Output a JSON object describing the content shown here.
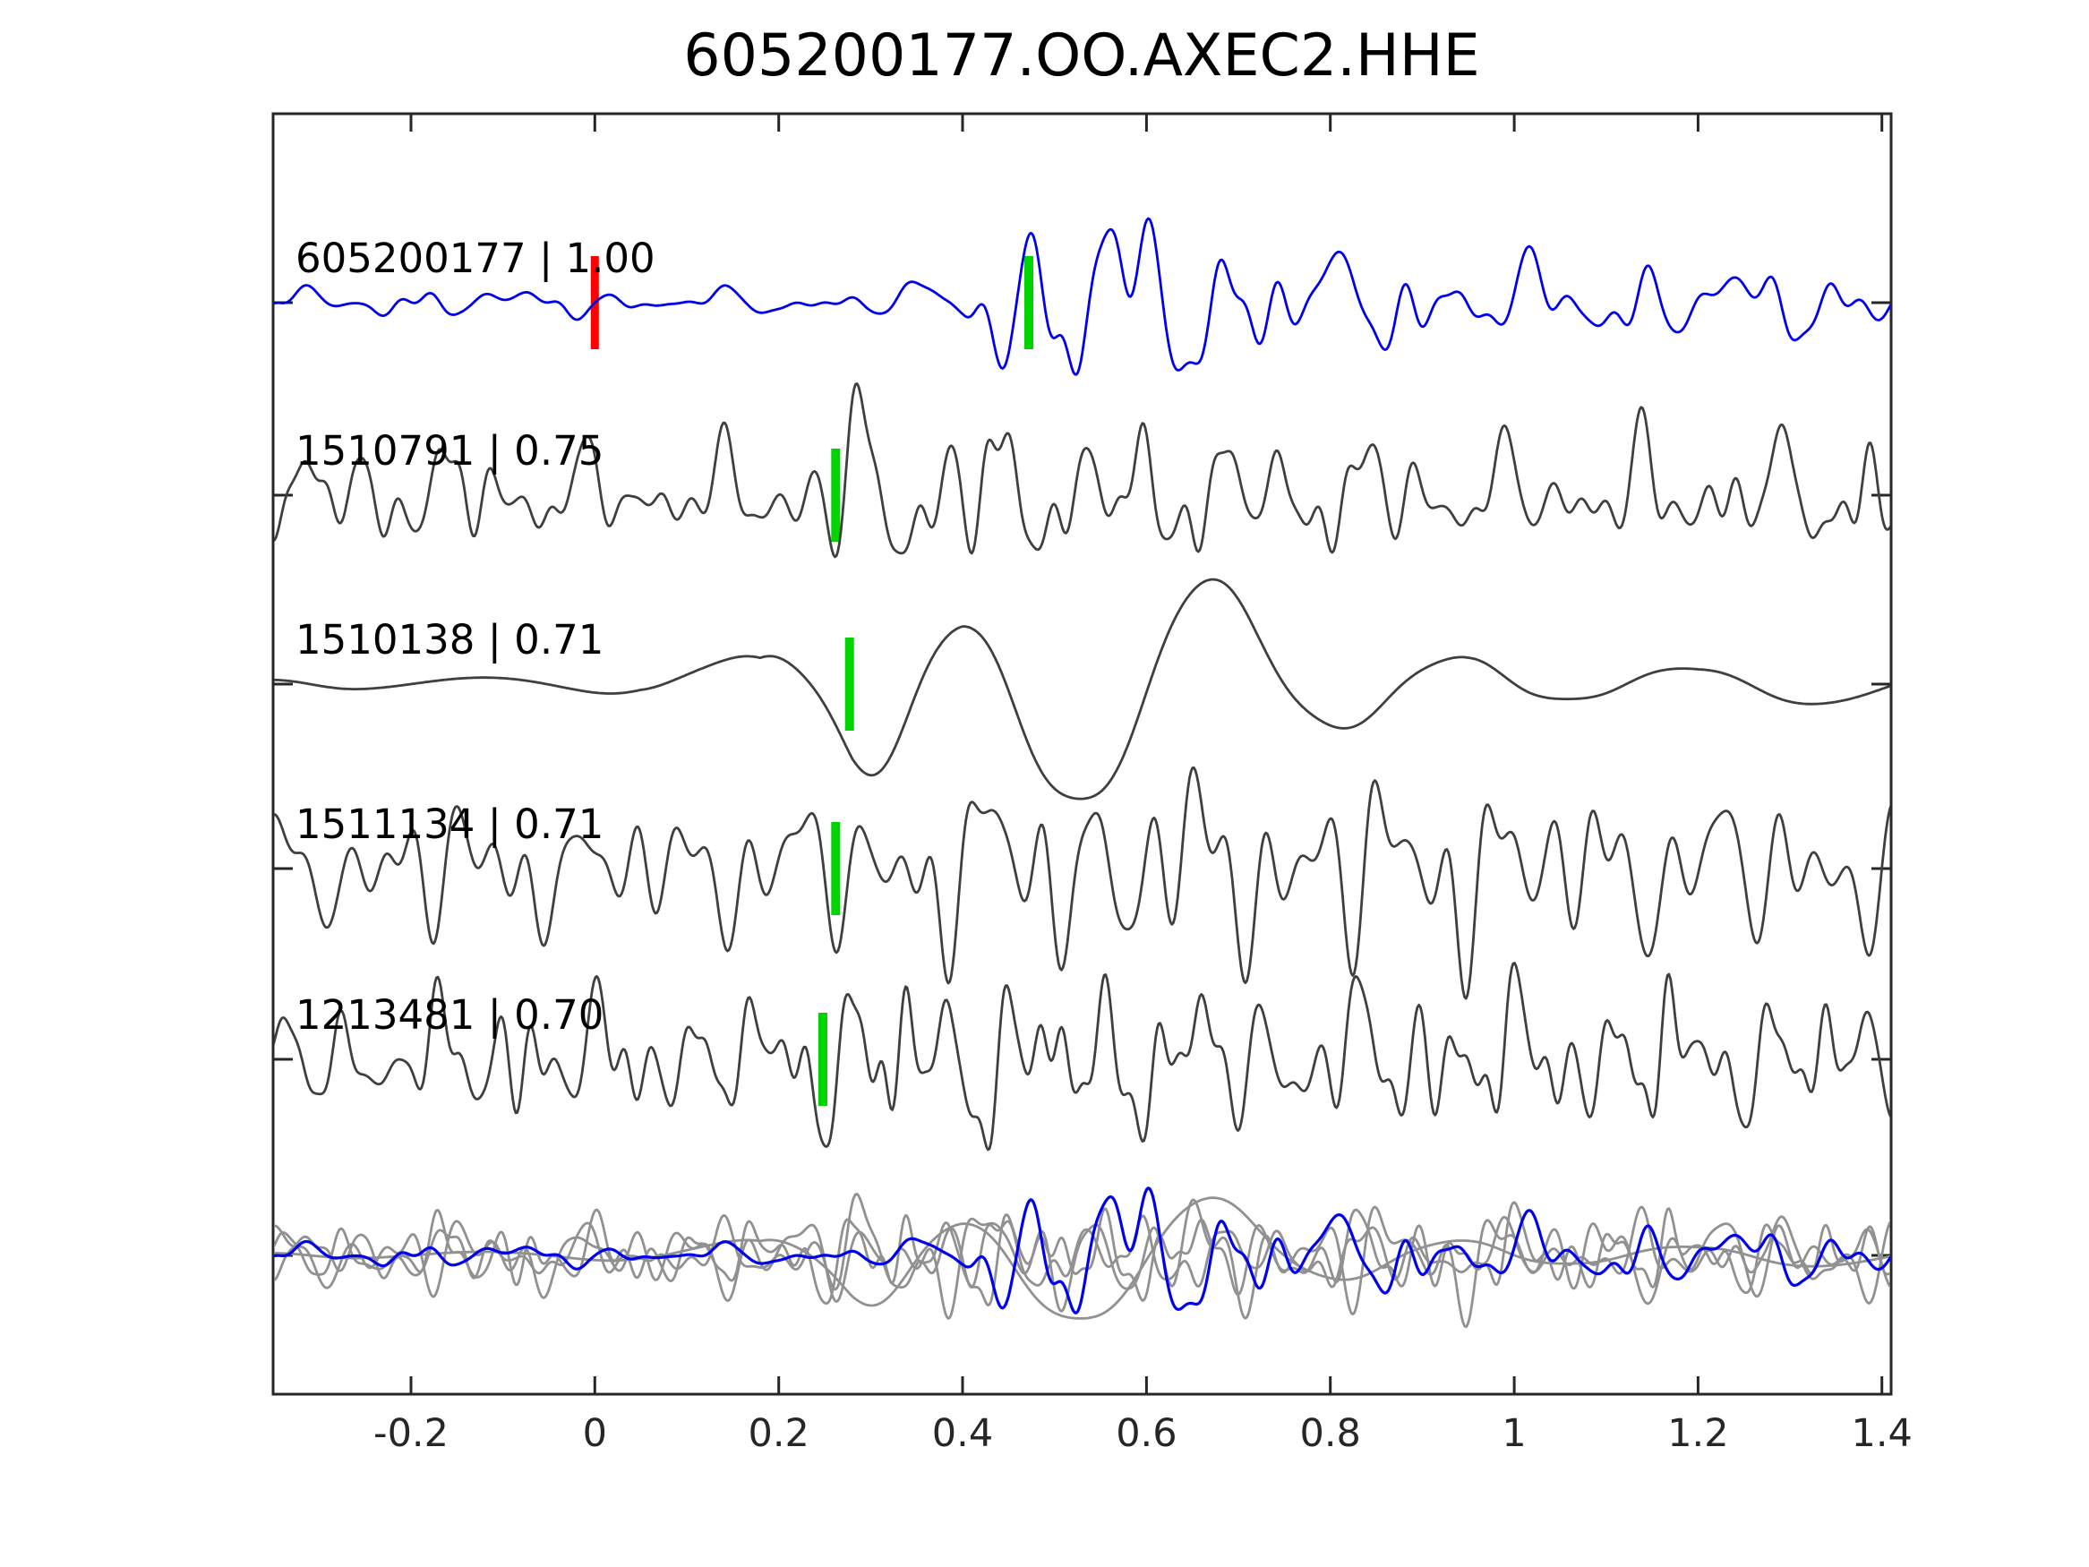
{
  "title": "605200177.OO.AXEC2.HHE",
  "colors": {
    "background": "#ffffff",
    "axis": "#262626",
    "text": "#000000",
    "reference_trace": "#0000ee",
    "candidate_trace": "#3f3f3f",
    "overlay_gray": "#919191",
    "pick_red": "#ff0000",
    "pick_green": "#00d400"
  },
  "chart_data": {
    "type": "line",
    "subtype": "seismogram-multi-trace-comparison",
    "title": "605200177.OO.AXEC2.HHE",
    "xlabel": "",
    "ylabel": "",
    "xlim": [
      -0.35,
      1.41
    ],
    "grid": false,
    "legend": null,
    "x_ticks": [
      {
        "value": -0.2,
        "label": "-0.2"
      },
      {
        "value": 0,
        "label": "0"
      },
      {
        "value": 0.2,
        "label": "0.2"
      },
      {
        "value": 0.4,
        "label": "0.4"
      },
      {
        "value": 0.6,
        "label": "0.6"
      },
      {
        "value": 0.8,
        "label": "0.8"
      },
      {
        "value": 1,
        "label": "1"
      },
      {
        "value": 1.2,
        "label": "1.2"
      },
      {
        "value": 1.4,
        "label": "1.4"
      }
    ],
    "rows": [
      {
        "kind": "trace",
        "event_id": "605200177",
        "similarity": 1.0,
        "label": "605200177 | 1.00",
        "color": "#0000ee",
        "picks": [
          {
            "time": 0.0,
            "color": "#ff0000",
            "type": "reference-time-marker"
          },
          {
            "time": 0.472,
            "color": "#00d400",
            "type": "phase-pick-marker"
          }
        ],
        "synth": {
          "seed": 7,
          "amp": 92,
          "components": [
            {
              "f": 9,
              "a": 0.55
            },
            {
              "f": 15,
              "a": 0.45
            },
            {
              "f": 22,
              "a": 0.3
            },
            {
              "f": 4.5,
              "a": 0.35
            }
          ],
          "detail": {
            "n": 8,
            "fmin": 18,
            "fmax": 40,
            "amp": 0.18
          },
          "envelope": [
            [
              -0.35,
              0.14
            ],
            [
              0.3,
              0.14
            ],
            [
              0.4,
              0.3
            ],
            [
              0.45,
              0.8
            ],
            [
              0.5,
              1.15
            ],
            [
              0.57,
              1.05
            ],
            [
              0.66,
              0.85
            ],
            [
              0.75,
              0.55
            ],
            [
              0.95,
              0.42
            ],
            [
              1.2,
              0.38
            ],
            [
              1.41,
              0.34
            ]
          ]
        }
      },
      {
        "kind": "trace",
        "event_id": "1510791",
        "similarity": 0.75,
        "label": "1510791 | 0.75",
        "color": "#3f3f3f",
        "picks": [
          {
            "time": 0.262,
            "color": "#00d400",
            "type": "phase-pick-marker"
          }
        ],
        "synth": {
          "seed": 21,
          "amp": 80,
          "components": [
            {
              "f": 13,
              "a": 0.6
            },
            {
              "f": 20,
              "a": 0.45
            },
            {
              "f": 7,
              "a": 0.5
            },
            {
              "f": 28,
              "a": 0.3
            }
          ],
          "detail": {
            "n": 8,
            "fmin": 20,
            "fmax": 45,
            "amp": 0.2
          },
          "envelope": [
            [
              -0.35,
              0.5
            ],
            [
              0.18,
              0.5
            ],
            [
              0.24,
              0.75
            ],
            [
              0.3,
              1.05
            ],
            [
              0.38,
              0.95
            ],
            [
              0.5,
              0.7
            ],
            [
              0.75,
              0.62
            ],
            [
              1.0,
              0.55
            ],
            [
              1.25,
              0.6
            ],
            [
              1.41,
              0.75
            ]
          ]
        }
      },
      {
        "kind": "trace",
        "event_id": "1510138",
        "similarity": 0.71,
        "label": "1510138 | 0.71",
        "color": "#3f3f3f",
        "picks": [
          {
            "time": 0.277,
            "color": "#00d400",
            "type": "phase-pick-marker"
          }
        ],
        "synth": {
          "seed": 5,
          "amp": 135,
          "components": [
            {
              "f": 3.8,
              "a": 1.0
            },
            {
              "f": 2.2,
              "a": 0.4
            },
            {
              "f": 1.2,
              "a": 0.2
            },
            {
              "f": 7,
              "a": 0.08
            }
          ],
          "detail": {
            "n": 4,
            "fmin": 6,
            "fmax": 12,
            "amp": 0.05
          },
          "envelope": [
            [
              -0.35,
              0.05
            ],
            [
              0.05,
              0.06
            ],
            [
              0.18,
              0.2
            ],
            [
              0.28,
              0.75
            ],
            [
              0.4,
              1.0
            ],
            [
              0.55,
              0.8
            ],
            [
              0.72,
              0.5
            ],
            [
              0.95,
              0.25
            ],
            [
              1.2,
              0.12
            ],
            [
              1.41,
              0.1
            ]
          ]
        }
      },
      {
        "kind": "trace",
        "event_id": "1511134",
        "similarity": 0.71,
        "label": "1511134 | 0.71",
        "color": "#3f3f3f",
        "picks": [
          {
            "time": 0.262,
            "color": "#00d400",
            "type": "phase-pick-marker"
          }
        ],
        "synth": {
          "seed": 13,
          "amp": 78,
          "components": [
            {
              "f": 16,
              "a": 0.6
            },
            {
              "f": 9,
              "a": 0.55
            },
            {
              "f": 25,
              "a": 0.4
            },
            {
              "f": 5,
              "a": 0.3
            }
          ],
          "detail": {
            "n": 10,
            "fmin": 18,
            "fmax": 42,
            "amp": 0.22
          },
          "envelope": [
            [
              -0.35,
              0.6
            ],
            [
              0.2,
              0.62
            ],
            [
              0.27,
              0.9
            ],
            [
              0.4,
              1.0
            ],
            [
              0.6,
              0.95
            ],
            [
              0.85,
              0.95
            ],
            [
              1.1,
              0.8
            ],
            [
              1.3,
              0.75
            ],
            [
              1.41,
              0.9
            ]
          ]
        }
      },
      {
        "kind": "trace",
        "event_id": "1213481",
        "similarity": 0.7,
        "label": "1213481 | 0.70",
        "color": "#3f3f3f",
        "picks": [
          {
            "time": 0.248,
            "color": "#00d400",
            "type": "phase-pick-marker"
          }
        ],
        "synth": {
          "seed": 29,
          "amp": 75,
          "components": [
            {
              "f": 18,
              "a": 0.6
            },
            {
              "f": 11,
              "a": 0.5
            },
            {
              "f": 29,
              "a": 0.35
            },
            {
              "f": 6,
              "a": 0.3
            }
          ],
          "detail": {
            "n": 10,
            "fmin": 20,
            "fmax": 48,
            "amp": 0.22
          },
          "envelope": [
            [
              -0.35,
              0.62
            ],
            [
              0.18,
              0.68
            ],
            [
              0.26,
              1.0
            ],
            [
              0.45,
              0.95
            ],
            [
              0.7,
              0.85
            ],
            [
              1.0,
              0.8
            ],
            [
              1.25,
              0.72
            ],
            [
              1.41,
              0.85
            ]
          ]
        }
      },
      {
        "kind": "overlay",
        "label": "",
        "description": "All five traces superimposed",
        "gray_color": "#919191",
        "reference_color": "#0000ee",
        "gray_scale": 0.55,
        "reference_scale": 0.8
      }
    ]
  }
}
